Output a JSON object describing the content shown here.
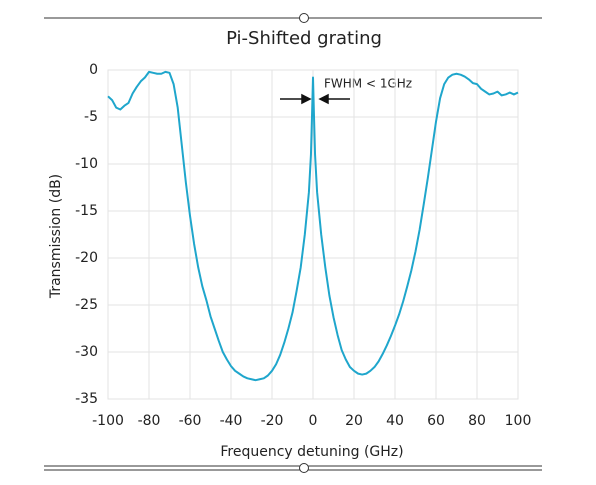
{
  "chart_data": {
    "type": "line",
    "title": "Pi-Shifted grating",
    "xlabel": "Frequency detuning (GHz)",
    "ylabel": "Transmission (dB)",
    "annotation": "FWHM < 1GHz",
    "color": "#1fa6cc",
    "x": [
      -100,
      -98,
      -96,
      -94,
      -92,
      -90,
      -88,
      -86,
      -84,
      -82,
      -80,
      -78,
      -76,
      -74,
      -72,
      -70,
      -68,
      -66,
      -64,
      -62,
      -60,
      -58,
      -56,
      -54,
      -52,
      -50,
      -48,
      -46,
      -44,
      -42,
      -40,
      -38,
      -36,
      -34,
      -32,
      -30,
      -28,
      -26,
      -24,
      -22,
      -20,
      -18,
      -16,
      -14,
      -12,
      -10,
      -8,
      -6,
      -4,
      -2,
      -1,
      -0.5,
      0,
      0.5,
      1,
      2,
      4,
      6,
      8,
      10,
      12,
      14,
      16,
      18,
      20,
      22,
      24,
      26,
      28,
      30,
      32,
      34,
      36,
      38,
      40,
      42,
      44,
      46,
      48,
      50,
      52,
      54,
      56,
      58,
      60,
      62,
      64,
      66,
      68,
      70,
      72,
      74,
      76,
      78,
      80,
      82,
      84,
      86,
      88,
      90,
      92,
      94,
      96,
      98,
      100
    ],
    "values": [
      -2.8,
      -3.2,
      -4,
      -4.2,
      -3.8,
      -3.5,
      -2.5,
      -1.8,
      -1.2,
      -0.8,
      -0.2,
      -0.3,
      -0.4,
      -0.4,
      -0.2,
      -0.3,
      -1.5,
      -4,
      -8,
      -12,
      -15.5,
      -18.5,
      -21,
      -23,
      -24.5,
      -26.2,
      -27.5,
      -28.8,
      -30,
      -30.8,
      -31.5,
      -32,
      -32.3,
      -32.6,
      -32.8,
      -32.9,
      -33,
      -32.9,
      -32.8,
      -32.5,
      -32,
      -31.3,
      -30.3,
      -29,
      -27.5,
      -25.8,
      -23.5,
      -21,
      -17.5,
      -13,
      -9,
      -5,
      -0.8,
      -5,
      -9,
      -13,
      -17.5,
      -21,
      -24,
      -26.3,
      -28.2,
      -29.8,
      -30.8,
      -31.6,
      -32,
      -32.3,
      -32.4,
      -32.3,
      -32,
      -31.6,
      -31,
      -30.2,
      -29.3,
      -28.3,
      -27.2,
      -26,
      -24.6,
      -23,
      -21.3,
      -19.3,
      -17,
      -14.3,
      -11.5,
      -8.5,
      -5.5,
      -3,
      -1.5,
      -0.8,
      -0.5,
      -0.4,
      -0.5,
      -0.7,
      -1,
      -1.4,
      -1.5,
      -2,
      -2.3,
      -2.6,
      -2.5,
      -2.3,
      -2.7,
      -2.6,
      -2.4,
      -2.6,
      -2.4
    ],
    "xlim": [
      -100,
      100
    ],
    "ylim": [
      -35,
      0
    ],
    "xticks": [
      -100,
      -80,
      -60,
      -40,
      -20,
      0,
      20,
      40,
      60,
      80,
      100
    ],
    "yticks": [
      -35,
      -30,
      -25,
      -20,
      -15,
      -10,
      -5,
      0
    ],
    "grid": true
  }
}
